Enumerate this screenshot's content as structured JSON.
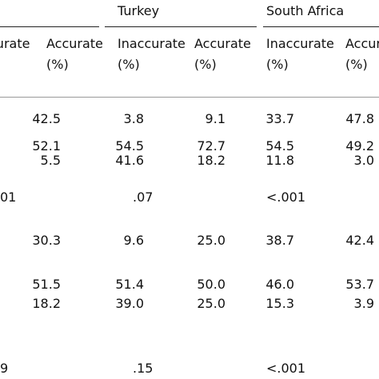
{
  "header": {
    "groups": [
      "Turkey",
      "South Africa"
    ],
    "columns": [
      {
        "label": "curate",
        "unit": ""
      },
      {
        "label": "Accurate",
        "unit": "(%)"
      },
      {
        "label": "Inaccurate",
        "unit": "(%)"
      },
      {
        "label": "Accurate",
        "unit": "(%)"
      },
      {
        "label": "Inaccurate",
        "unit": "(%)"
      },
      {
        "label": "Accura",
        "unit": "(%)"
      }
    ]
  },
  "table": {
    "rows": [
      [
        "42.5",
        "3.8",
        "9.1",
        "33.7",
        "47.8"
      ],
      [
        "52.1",
        "54.5",
        "72.7",
        "54.5",
        "49.2"
      ],
      [
        "5.5",
        "41.6",
        "18.2",
        "11.8",
        "3.0"
      ],
      [
        "01",
        ".07",
        "<.001"
      ],
      [
        "30.3",
        "9.6",
        "25.0",
        "38.7",
        "42.4"
      ],
      [
        "51.5",
        "51.4",
        "50.0",
        "46.0",
        "53.7"
      ],
      [
        "18.2",
        "39.0",
        "25.0",
        "15.3",
        "3.9"
      ],
      [
        "9",
        ".15",
        "<.001"
      ]
    ]
  }
}
